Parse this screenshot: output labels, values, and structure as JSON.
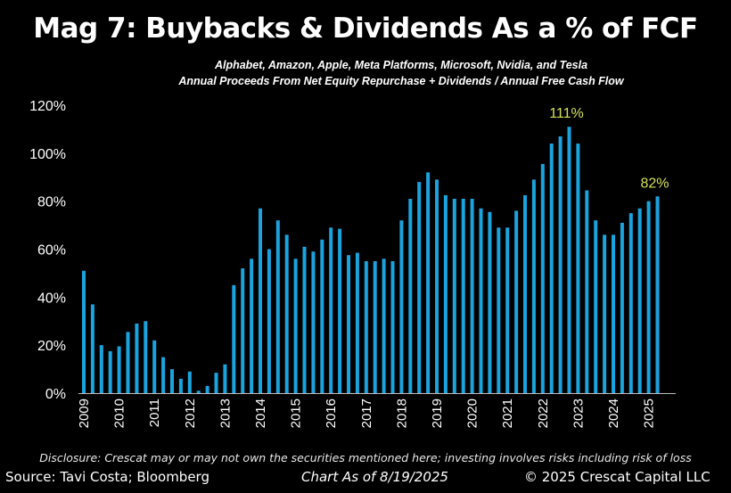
{
  "title": "Mag 7: Buybacks & Dividends As a % of FCF",
  "subtitle1": "Alphabet, Amazon, Apple, Meta Platforms, Microsoft, Nvidia, and Tesla",
  "subtitle2": "Annual Proceeds From Net Equity Repurchase + Dividends / Annual Free Cash Flow",
  "footer": {
    "disclosure": "Disclosure: Crescat may or may not own the securities mentioned here; investing involves risks including risk of loss",
    "source": "Source: Tavi Costa; Bloomberg",
    "as_of": "Chart As of 8/19/2025",
    "copyright": "© 2025 Crescat Capital LLC"
  },
  "chart_data": {
    "type": "bar",
    "title": "Mag 7: Buybacks & Dividends As a % of FCF",
    "xlabel": "",
    "ylabel": "",
    "ylim": [
      0,
      120
    ],
    "yticks": [
      "0%",
      "20%",
      "40%",
      "60%",
      "80%",
      "100%",
      "120%"
    ],
    "ytick_values": [
      0,
      20,
      40,
      60,
      80,
      100,
      120
    ],
    "xticks": [
      "2009",
      "2010",
      "2011",
      "2012",
      "2013",
      "2014",
      "2015",
      "2016",
      "2017",
      "2018",
      "2019",
      "2020",
      "2021",
      "2022",
      "2023",
      "2024",
      "2025"
    ],
    "bars_per_year": 4,
    "grid": false,
    "bar_color": "#1ba3dd",
    "annotation_color": "#d4e157",
    "values": [
      51,
      37,
      20,
      17.5,
      19.5,
      25.5,
      29,
      30,
      22,
      15,
      10,
      6,
      9,
      1,
      3,
      8.5,
      12,
      45,
      52,
      56,
      77,
      60,
      72,
      66,
      56,
      61,
      59,
      64,
      69,
      68.5,
      57.5,
      58.5,
      55,
      55,
      56,
      55,
      72,
      81,
      88,
      92,
      89,
      82.5,
      81,
      81,
      81,
      77,
      75.5,
      69,
      69,
      76,
      82.5,
      89,
      95.5,
      104,
      107,
      111,
      104,
      84.5,
      72,
      66,
      66,
      71,
      75,
      77,
      80,
      82
    ],
    "annotations": [
      {
        "index": 55,
        "label": "111%"
      },
      {
        "index": 65,
        "label": "82%"
      }
    ]
  }
}
